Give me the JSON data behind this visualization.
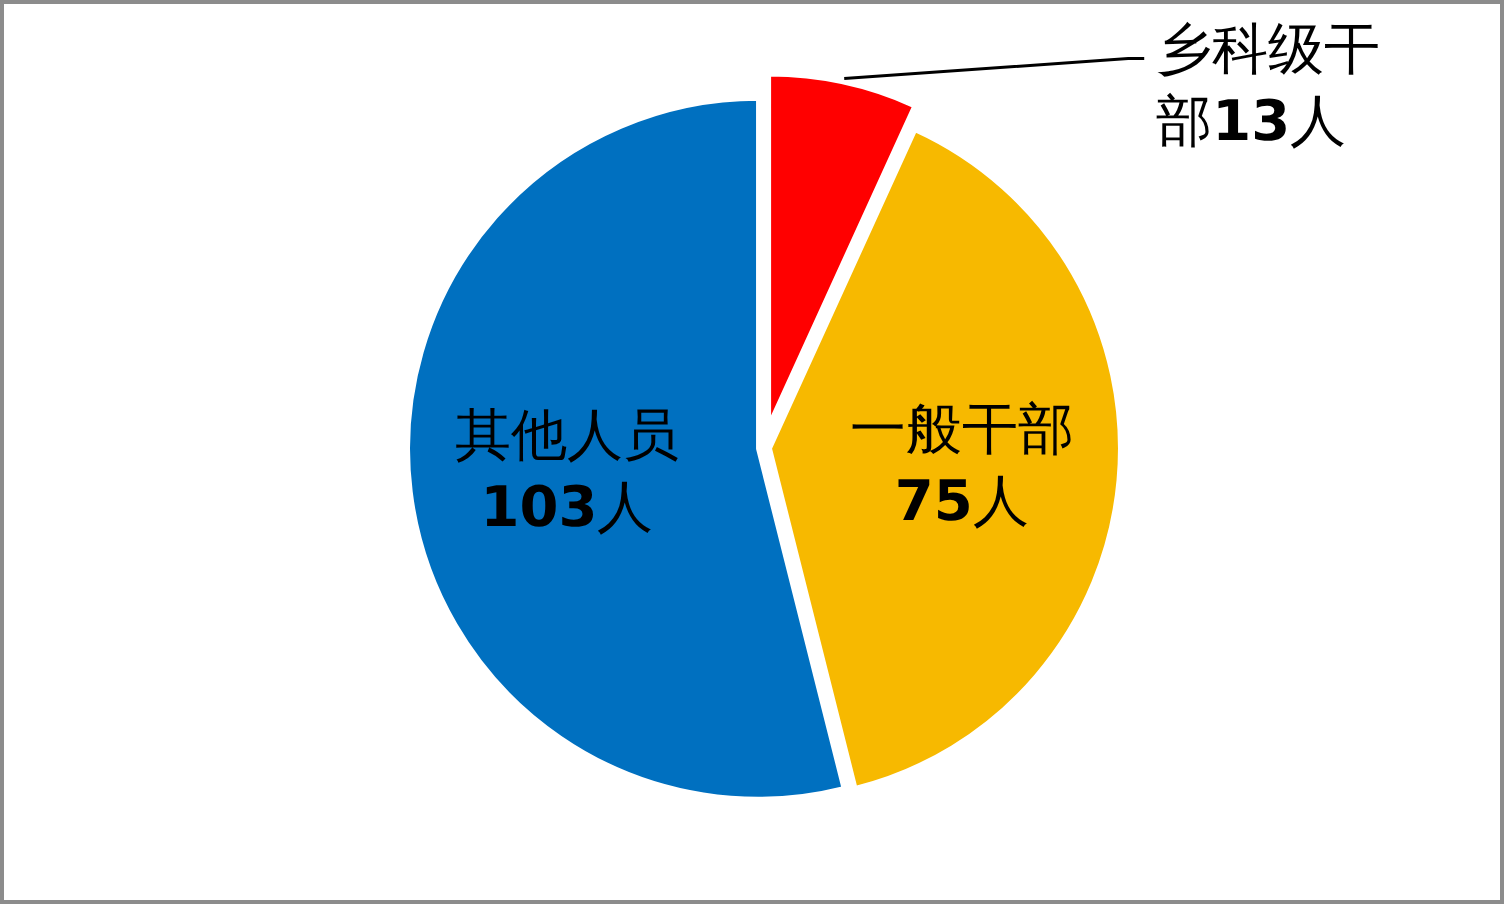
{
  "chart_data": {
    "type": "pie",
    "categories": [
      "乡科级干部",
      "一般干部",
      "其他人员"
    ],
    "values": [
      13,
      75,
      103
    ],
    "colors": [
      "#ff0000",
      "#f7b900",
      "#0070c0"
    ],
    "value_labels": [
      "**13**人",
      "**75**人",
      "**103**人"
    ]
  }
}
